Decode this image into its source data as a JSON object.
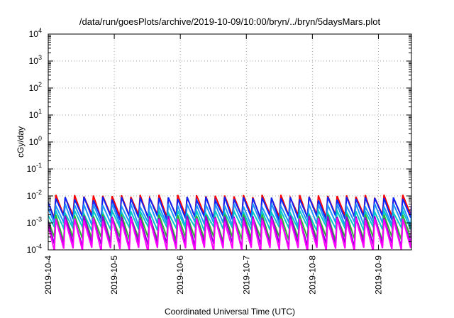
{
  "chart_data": {
    "type": "line",
    "title": "/data/run/goesPlots/archive/2019-10-09/10:00/bryn/../bryn/5daysMars.plot",
    "xlabel": "Coordinated Universal Time (UTC)",
    "ylabel": "cGy/day",
    "x_ticks": [
      "2019-10-4",
      "2019-10-5",
      "2019-10-6",
      "2019-10-7",
      "2019-10-8",
      "2019-10-9"
    ],
    "x_range_days": [
      0,
      5.5
    ],
    "y_scale": "log",
    "ylim": [
      0.0001,
      10000
    ],
    "y_ticks": [
      {
        "base": "10",
        "exp": "-4"
      },
      {
        "base": "10",
        "exp": "-3"
      },
      {
        "base": "10",
        "exp": "-2"
      },
      {
        "base": "10",
        "exp": "-1"
      },
      {
        "base": "10",
        "exp": "0"
      },
      {
        "base": "10",
        "exp": "1"
      },
      {
        "base": "10",
        "exp": "2"
      },
      {
        "base": "10",
        "exp": "3"
      },
      {
        "base": "10",
        "exp": "4"
      }
    ],
    "grid": true,
    "legend": "none",
    "pattern": "sawtooth, period ~0.14 day, rises sharply then decays",
    "series": [
      {
        "color": "#ff0000",
        "peak": 0.0095,
        "trough": 0.0017
      },
      {
        "color": "#0b24fb",
        "peak": 0.008,
        "trough": 0.0015
      },
      {
        "color": "#1e90ff",
        "peak": 0.0045,
        "trough": 0.0009
      },
      {
        "color": "#00c8c8",
        "peak": 0.0025,
        "trough": 0.0006
      },
      {
        "color": "#32b432",
        "peak": 0.0018,
        "trough": 0.00025
      },
      {
        "color": "#9400d3",
        "peak": 0.0016,
        "trough": 0.00015
      },
      {
        "color": "#ff00ff",
        "peak": 0.0013,
        "trough": 0.0001
      }
    ]
  }
}
